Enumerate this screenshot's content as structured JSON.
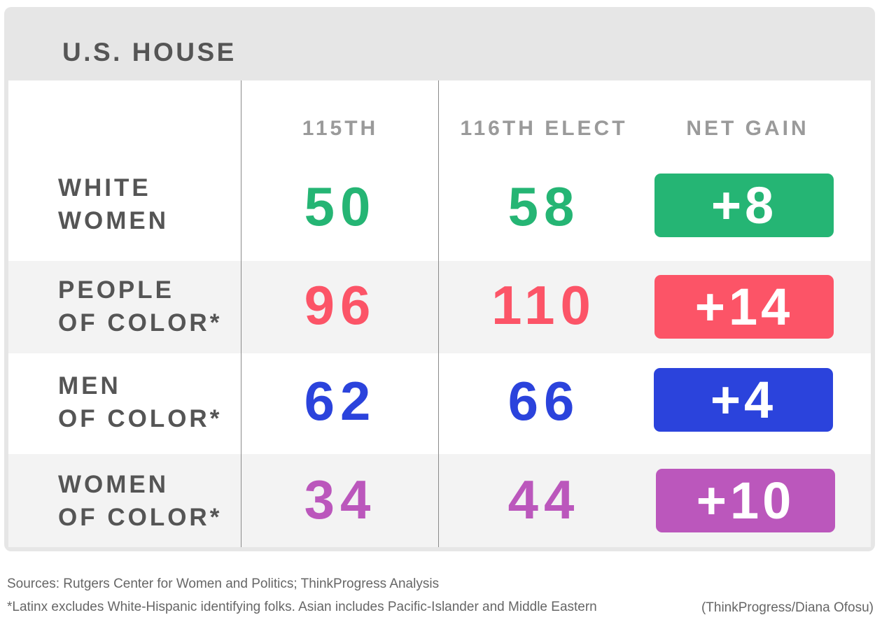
{
  "chart_data": {
    "type": "table",
    "title": "U.S. HOUSE",
    "columns": [
      "115TH",
      "116TH ELECT",
      "NET GAIN"
    ],
    "rows": [
      {
        "label": [
          "WHITE",
          "WOMEN"
        ],
        "v115": "50",
        "v116": "58",
        "gain": "+8",
        "color": "#25b574"
      },
      {
        "label": [
          "PEOPLE",
          "OF COLOR*"
        ],
        "v115": "96",
        "v116": "110",
        "gain": "+14",
        "color": "#fc5467"
      },
      {
        "label": [
          "MEN",
          "OF COLOR*"
        ],
        "v115": "62",
        "v116": "66",
        "gain": "+4",
        "color": "#2b43dc"
      },
      {
        "label": [
          "WOMEN",
          "OF COLOR*"
        ],
        "v115": "34",
        "v116": "44",
        "gain": "+10",
        "color": "#bb57bc"
      }
    ]
  },
  "footer": {
    "sources": "Sources: Rutgers Center for Women and Politics; ThinkProgress Analysis",
    "note": "*Latinx excludes White-Hispanic identifying folks. Asian includes Pacific-Islander and Middle Eastern",
    "credit": "(ThinkProgress/Diana Ofosu)"
  }
}
